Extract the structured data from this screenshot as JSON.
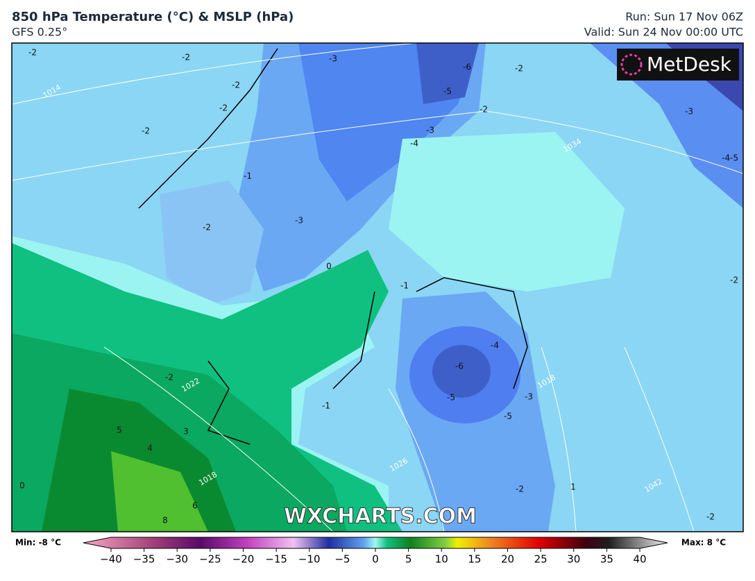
{
  "header": {
    "title": "850 hPa Temperature (°C) & MSLP (hPa)",
    "subtitle": "GFS 0.25°",
    "run": "Run: Sun 17 Nov 06Z",
    "valid": "Valid: Sun 24 Nov 00:00 UTC"
  },
  "logo": "MetDesk",
  "watermark": "WXCHARTS.COM",
  "map_labels": [
    "-2",
    "-2",
    "-3",
    "-6",
    "-2",
    "1014",
    "-2",
    "-2",
    "-5",
    "-2",
    "-3",
    "-2",
    "-4",
    "-3",
    "1034",
    "-4-5",
    "-1",
    "-2",
    "-3",
    "0",
    "-1",
    "-2",
    "-4",
    "-6",
    "-2",
    "1022",
    "1018",
    "-5",
    "-3",
    "-5",
    "-1",
    "5",
    "3",
    "4",
    "1026",
    "1018",
    "0",
    "-2",
    "1042",
    "1",
    "6",
    "8",
    "-2"
  ],
  "colorbar": {
    "min": "Min: -8 °C",
    "max": "Max: 8 °C",
    "ticks": [
      "−40",
      "−35",
      "−30",
      "−25",
      "−20",
      "−15",
      "−10",
      "−5",
      "0",
      "5",
      "10",
      "15",
      "20",
      "25",
      "30",
      "35",
      "40"
    ]
  }
}
